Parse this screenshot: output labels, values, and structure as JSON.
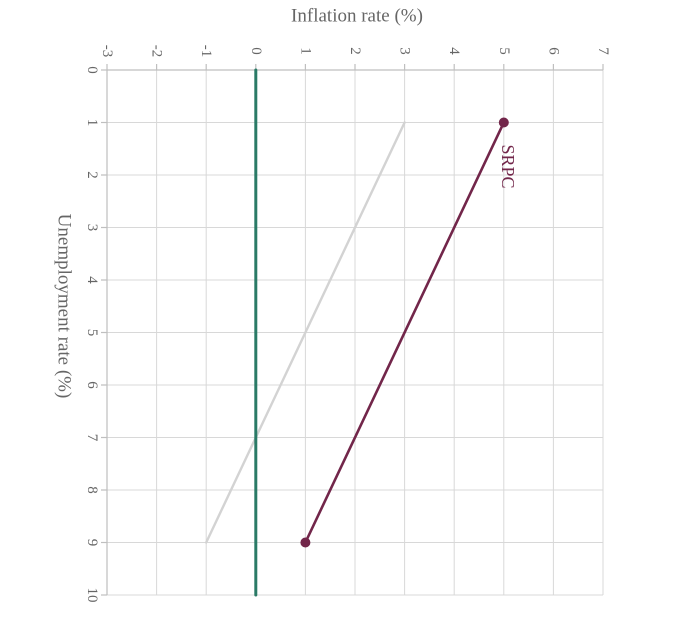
{
  "chart_data": {
    "type": "line",
    "title": "",
    "xlabel": "Unemployment rate (%)",
    "ylabel": "Inflation rate (%)",
    "xlim": [
      0,
      10
    ],
    "ylim": [
      -3,
      7
    ],
    "x_ticks": [
      "0",
      "1",
      "2",
      "3",
      "4",
      "5",
      "6",
      "7",
      "8",
      "9",
      "10"
    ],
    "y_ticks": [
      "-3",
      "-2",
      "-1",
      "0",
      "1",
      "2",
      "3",
      "4",
      "5",
      "6",
      "7"
    ],
    "grid": true,
    "orientation": "rotated 90 degrees clockwise",
    "series": [
      {
        "x": [
          1,
          9
        ],
        "y": [
          3,
          -1
        ],
        "color": "#d3d3d3",
        "markers": false
      },
      {
        "name": "SRPC",
        "x": [
          1,
          9
        ],
        "y": [
          5,
          1
        ],
        "color": "#72264a",
        "markers": true
      },
      {
        "x": [
          0,
          10
        ],
        "y": [
          0,
          0
        ],
        "color": "#2a7a66",
        "markers": false
      }
    ]
  }
}
